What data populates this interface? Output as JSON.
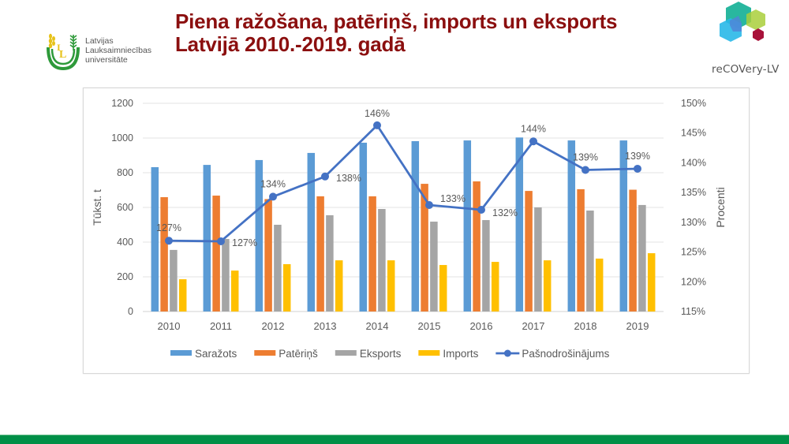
{
  "header": {
    "title_line1": "Piena ražošana, patēriņš, imports un eksports",
    "title_line2": "Latvijā 2010.-2019. gadā",
    "title_color": "#8b0f0f"
  },
  "logos": {
    "llu": {
      "icon": "llu-wheat-logo-icon",
      "line1": "Latvijas",
      "line2": "Lauksaimniecības",
      "line3": "universitāte"
    },
    "recovery": {
      "icon": "hexagon-cluster-logo-icon",
      "text": "reCOVery-LV"
    }
  },
  "footer": {
    "bar_color": "#008f47"
  },
  "chart_data": {
    "type": "bar",
    "combo": "clustered bar + line on secondary axis",
    "title": "",
    "categories": [
      "2010",
      "2011",
      "2012",
      "2013",
      "2014",
      "2015",
      "2016",
      "2017",
      "2018",
      "2019"
    ],
    "ylabel": "Tūkst. t",
    "y2label": "Procenti",
    "ylim": [
      0,
      1200
    ],
    "yticks": [
      "0",
      "200",
      "400",
      "600",
      "800",
      "1000",
      "1200"
    ],
    "y2lim": [
      115,
      150
    ],
    "y2ticks": [
      "115%",
      "120%",
      "125%",
      "130%",
      "135%",
      "140%",
      "145%",
      "150%"
    ],
    "grid": true,
    "legend_position": "bottom",
    "series": [
      {
        "name": "Saražots",
        "type": "bar",
        "axis": "left",
        "color": "#5b9bd5",
        "values": [
          832,
          845,
          873,
          914,
          973,
          982,
          986,
          1003,
          986,
          986
        ]
      },
      {
        "name": "Patēriņš",
        "type": "bar",
        "axis": "left",
        "color": "#ed7d31",
        "values": [
          659,
          668,
          648,
          664,
          664,
          736,
          750,
          695,
          705,
          702
        ]
      },
      {
        "name": "Eksports",
        "type": "bar",
        "axis": "left",
        "color": "#a5a5a5",
        "values": [
          355,
          418,
          500,
          555,
          591,
          518,
          527,
          600,
          582,
          614
        ]
      },
      {
        "name": "Imports",
        "type": "bar",
        "axis": "left",
        "color": "#ffc000",
        "values": [
          186,
          236,
          273,
          295,
          295,
          268,
          286,
          295,
          305,
          336
        ]
      },
      {
        "name": "Pašnodrošinājums",
        "type": "line",
        "axis": "right",
        "color": "#4472c4",
        "values": [
          126.9,
          126.8,
          134.3,
          137.7,
          146.3,
          132.9,
          132.1,
          143.6,
          138.8,
          139.0
        ],
        "labels": [
          "127%",
          "127%",
          "134%",
          "138%",
          "146%",
          "133%",
          "132%",
          "144%",
          "139%",
          "139%"
        ]
      }
    ]
  }
}
